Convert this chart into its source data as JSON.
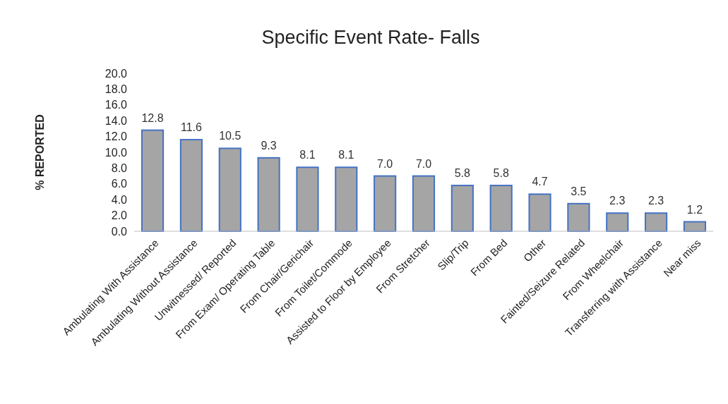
{
  "chart_data": {
    "type": "bar",
    "title": "Specific Event Rate- Falls",
    "ylabel": "% REPORTED",
    "categories": [
      "Ambulating With Assistance",
      "Ambulating Without Assistance",
      "Unwitnessed/ Reported",
      "From Exam/ Operating Table",
      "From Chair/Gerichair",
      "From Toilet/Commode",
      "Assisted to Floor by Employee",
      "From Stretcher",
      "Slip/Trip",
      "From Bed",
      "Other",
      "Fainted/Seizure Related",
      "From Wheelchair",
      "Transferring with Assistance",
      "Near miss"
    ],
    "values": [
      12.8,
      11.6,
      10.5,
      9.3,
      8.1,
      8.1,
      7.0,
      7.0,
      5.8,
      5.8,
      4.7,
      3.5,
      2.3,
      2.3,
      1.2
    ],
    "value_labels": [
      "12.8",
      "11.6",
      "10.5",
      "9.3",
      "8.1",
      "8.1",
      "7.0",
      "7.0",
      "5.8",
      "5.8",
      "4.7",
      "3.5",
      "2.3",
      "2.3",
      "1.2"
    ],
    "color": "#a5a5a5",
    "ylim": [
      0,
      20
    ],
    "yticks": [
      {
        "value": 0,
        "label": "0.0"
      },
      {
        "value": 2,
        "label": "2.0"
      },
      {
        "value": 4,
        "label": "4.0"
      },
      {
        "value": 6,
        "label": "6.0"
      },
      {
        "value": 8,
        "label": "8.0"
      },
      {
        "value": 10,
        "label": "10.0"
      },
      {
        "value": 12,
        "label": "12.0"
      },
      {
        "value": 14,
        "label": "14.0"
      },
      {
        "value": 16,
        "label": "16.0"
      },
      {
        "value": 18,
        "label": "18.0"
      },
      {
        "value": 20,
        "label": "20.0"
      }
    ],
    "grid": false
  }
}
